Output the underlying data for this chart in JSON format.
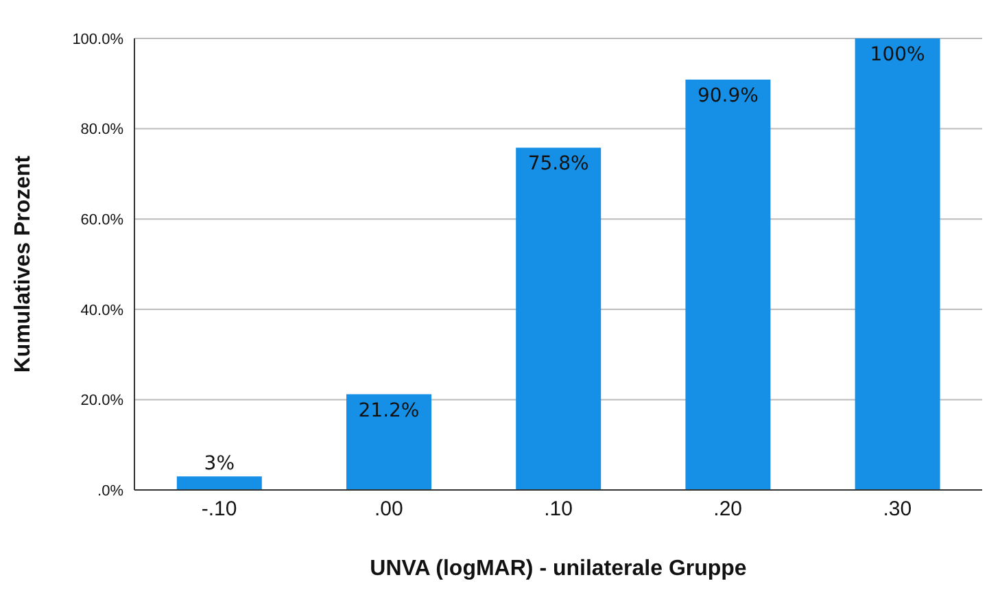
{
  "chart_data": {
    "type": "bar",
    "xlabel": "UNVA (logMAR) - unilaterale Gruppe",
    "ylabel": "Kumulatives Prozent",
    "categories": [
      "-.10",
      ".00",
      ".10",
      ".20",
      ".30"
    ],
    "values": [
      3,
      21.2,
      75.8,
      90.9,
      100
    ],
    "value_labels": [
      "3%",
      "21.2%",
      "75.8%",
      "90.9%",
      "100%"
    ],
    "color": "#1590e6",
    "ylim": [
      0,
      100
    ],
    "yticks": [
      {
        "value": 0,
        "label": ".0%"
      },
      {
        "value": 20,
        "label": "20.0%"
      },
      {
        "value": 40,
        "label": "40.0%"
      },
      {
        "value": 60,
        "label": "60.0%"
      },
      {
        "value": 80,
        "label": "80.0%"
      },
      {
        "value": 100,
        "label": "100.0%"
      }
    ],
    "grid": "y"
  }
}
